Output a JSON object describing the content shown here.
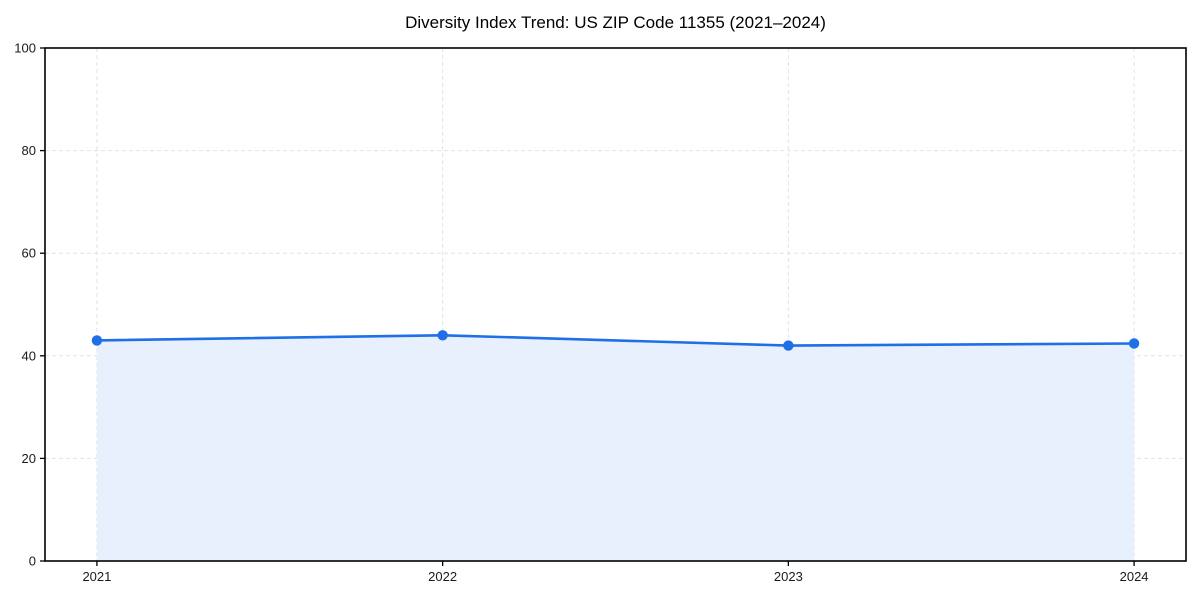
{
  "chart_data": {
    "type": "area",
    "title": "Diversity Index Trend: US ZIP Code 11355 (2021–2024)",
    "xlabel": "",
    "ylabel": "",
    "x": [
      2021,
      2022,
      2023,
      2024
    ],
    "xtick_labels": [
      "2021",
      "2022",
      "2023",
      "2024"
    ],
    "series": [
      {
        "name": "Diversity Index",
        "values": [
          43,
          44,
          42,
          42.4
        ]
      }
    ],
    "ylim": [
      0,
      100
    ],
    "yticks": [
      0,
      20,
      40,
      60,
      80,
      100
    ],
    "grid": "on",
    "grid_style": "dashed",
    "legend": "none",
    "colors": {
      "line": "#1f6fe6",
      "marker": "#1f6fe6",
      "fill": "#e8f0fd",
      "grid": "#e3e3e3",
      "spine": "#000000",
      "tick": "#000000",
      "tick_label": "#1a1a1a",
      "title": "#000000",
      "background": "#ffffff"
    }
  }
}
